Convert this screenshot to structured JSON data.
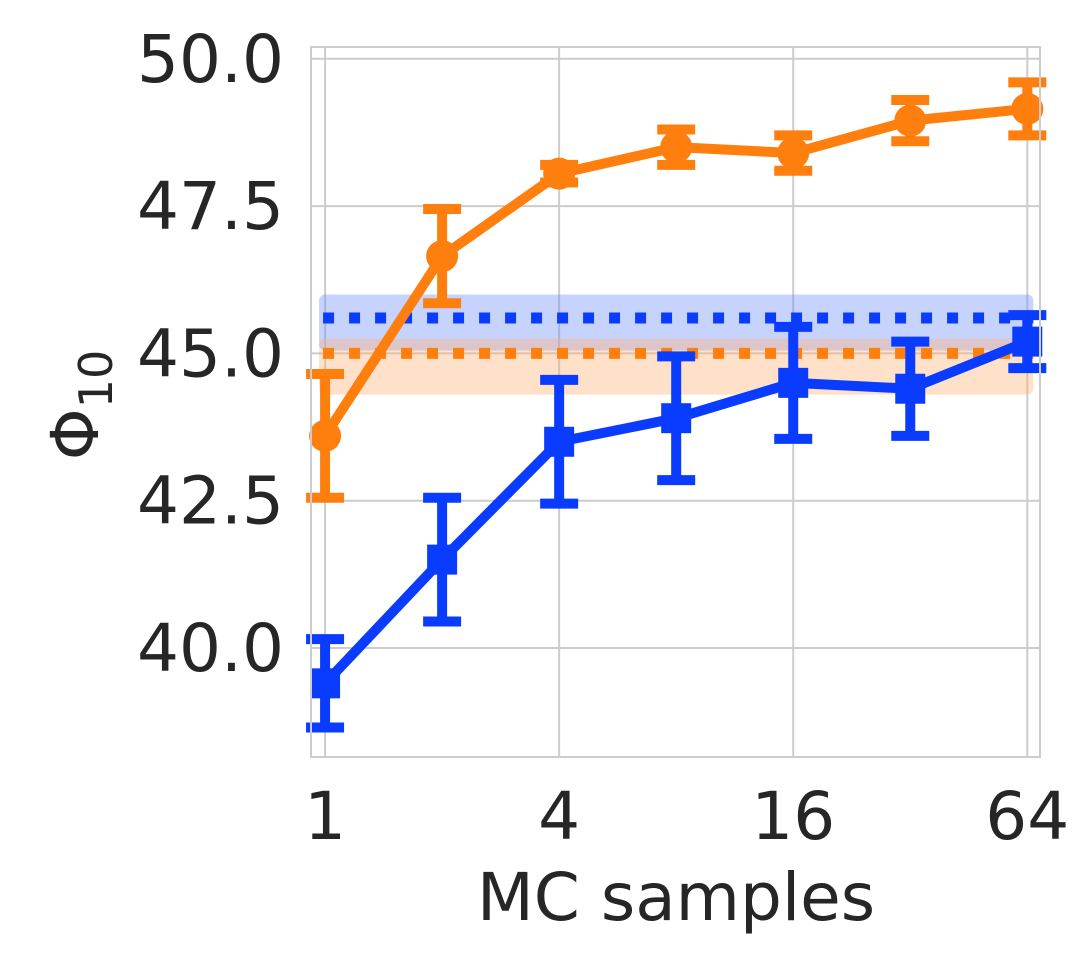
{
  "chart_data": {
    "type": "line",
    "xlabel": "MC samples",
    "ylabel_base": "Φ",
    "ylabel_sub": "10",
    "x_scale": "log2",
    "x": [
      1,
      2,
      4,
      8,
      16,
      32,
      64
    ],
    "x_ticks": [
      1,
      4,
      16,
      64
    ],
    "x_tick_labels": [
      "1",
      "4",
      "16",
      "64"
    ],
    "xlim": [
      0.92,
      69
    ],
    "y_ticks": [
      40.0,
      42.5,
      45.0,
      47.5,
      50.0
    ],
    "y_tick_labels": [
      "40.0",
      "42.5",
      "45.0",
      "47.5",
      "50.0"
    ],
    "ylim": [
      38.15,
      50.2
    ],
    "grid": true,
    "series": [
      {
        "color": "#ff7f0e",
        "marker": "circle",
        "values": [
          43.6,
          46.65,
          48.05,
          48.5,
          48.4,
          48.95,
          49.15
        ],
        "err": [
          1.05,
          0.8,
          0.15,
          0.3,
          0.3,
          0.35,
          0.45
        ]
      },
      {
        "color": "#0a3cff",
        "marker": "square",
        "values": [
          39.4,
          41.5,
          43.5,
          43.9,
          44.5,
          44.4,
          45.2
        ],
        "err": [
          0.75,
          1.05,
          1.05,
          1.05,
          0.95,
          0.8,
          0.45
        ]
      }
    ],
    "reference_lines": [
      {
        "color": "#0a3cff",
        "band_color": "#6b8cff",
        "value": 45.6,
        "band": [
          45.05,
          46.0
        ],
        "style": "dotted"
      },
      {
        "color": "#ff7f0e",
        "band_color": "#ffb070",
        "value": 45.0,
        "band": [
          44.3,
          45.25
        ],
        "style": "dotted"
      }
    ]
  }
}
